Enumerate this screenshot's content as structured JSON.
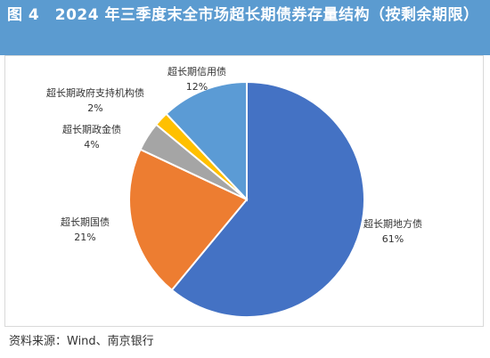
{
  "title": "图 4　2024 年三季度末全市场超长期债券存量结构（按剩余期限）",
  "source": "资料来源：Wind、南京银行",
  "chart_data": {
    "type": "pie",
    "title": "图 4　2024 年三季度末全市场超长期债券存量结构（按剩余期限）",
    "slices": [
      {
        "name": "超长期地方债",
        "value": 61,
        "value_label": "61%",
        "color": "#4472c4"
      },
      {
        "name": "超长期国债",
        "value": 21,
        "value_label": "21%",
        "color": "#ed7d31"
      },
      {
        "name": "超长期政金债",
        "value": 4,
        "value_label": "4%",
        "color": "#a5a5a5"
      },
      {
        "name": "超长期政府支持机构债",
        "value": 2,
        "value_label": "2%",
        "color": "#ffc000"
      },
      {
        "name": "超长期信用债",
        "value": 12,
        "value_label": "12%",
        "color": "#5b9bd5"
      }
    ],
    "start_angle": "12 o'clock",
    "direction": "clockwise",
    "legend": "none (data labels outside slices)"
  }
}
